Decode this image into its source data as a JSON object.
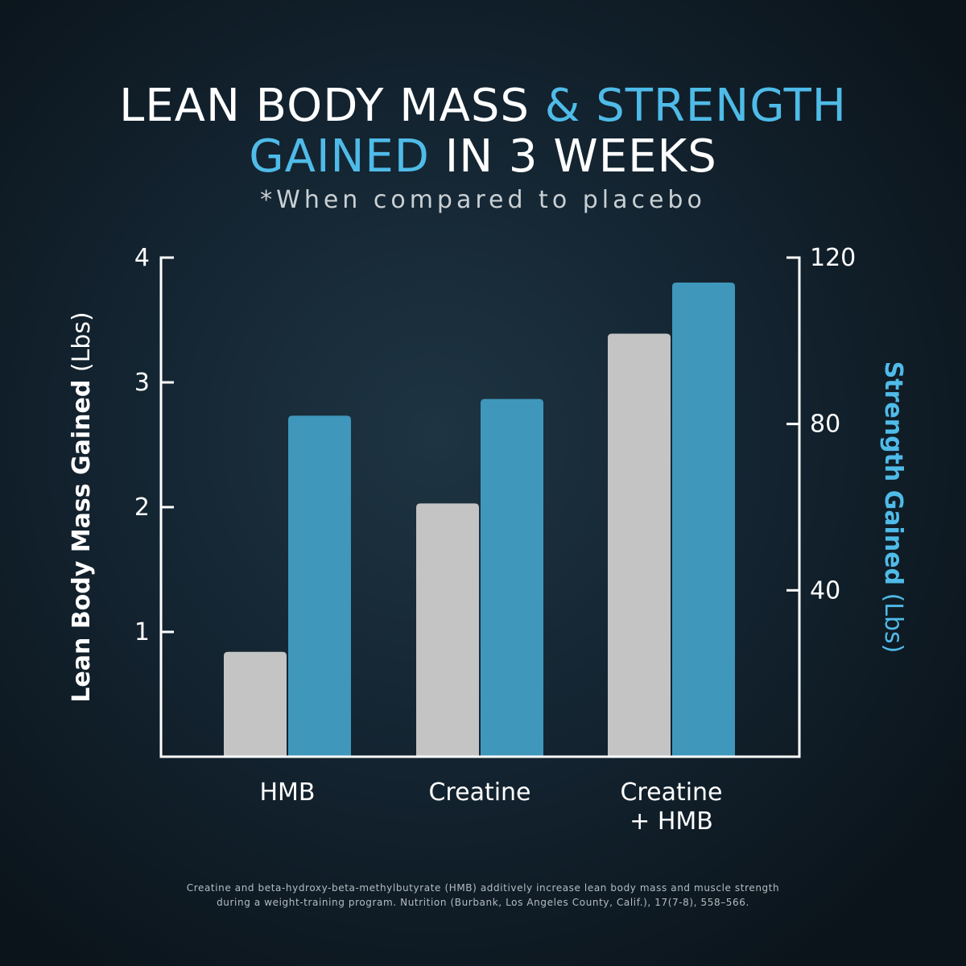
{
  "title": {
    "line1_white": "LEAN BODY MASS ",
    "line1_accent": "& STRENGTH",
    "line2_accent": "GAINED",
    "line2_white": " IN 3 WEEKS"
  },
  "subtitle": "*When compared to placebo",
  "footnote": {
    "line1": "Creatine and beta-hydroxy-beta-methylbutyrate (HMB) additively increase lean body mass and muscle strength",
    "line2": "during a weight-training program. Nutrition (Burbank, Los Angeles County, Calif.), 17(7-8), 558–566."
  },
  "colors": {
    "lean": "#c4c4c4",
    "strength": "#3f97bb",
    "accent": "#4fbbe8",
    "background": "#0e1820"
  },
  "chart_data": {
    "type": "bar",
    "categories": [
      [
        "HMB"
      ],
      [
        "Creatine"
      ],
      [
        "Creatine",
        "+ HMB"
      ]
    ],
    "left_axis": {
      "label_bold": "Lean Body Mass Gained",
      "label_unit": " (Lbs)",
      "ylim": [
        0,
        4
      ],
      "ticks": [
        "1",
        "2",
        "3",
        "4"
      ]
    },
    "right_axis": {
      "label_bold": "Strength Gained",
      "label_unit": " (Lbs)",
      "ylim": [
        0,
        120
      ],
      "ticks": [
        "40",
        "80",
        "120"
      ]
    },
    "series": [
      {
        "axis": "left",
        "color": "#c4c4c4",
        "values": [
          0.84,
          2.03,
          3.39
        ]
      },
      {
        "axis": "right",
        "color": "#3f97bb",
        "values": [
          82,
          86,
          114
        ]
      }
    ],
    "grid": false,
    "legend": "none"
  }
}
